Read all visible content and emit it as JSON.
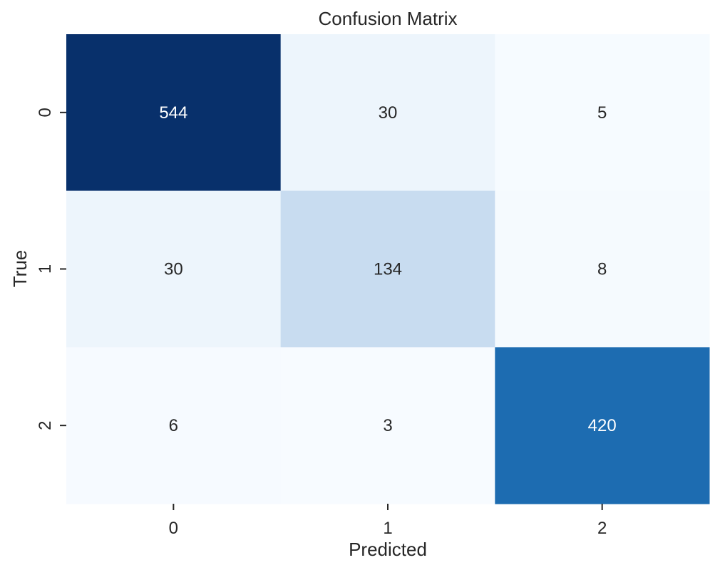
{
  "chart_data": {
    "type": "heatmap",
    "title": "Confusion Matrix",
    "xlabel": "Predicted",
    "ylabel": "True",
    "x_categories": [
      "0",
      "1",
      "2"
    ],
    "y_categories": [
      "0",
      "1",
      "2"
    ],
    "values": [
      [
        544,
        30,
        5
      ],
      [
        30,
        134,
        8
      ],
      [
        6,
        3,
        420
      ]
    ],
    "colormap": "Blues",
    "color_low": "#f7fbff",
    "color_high": "#08306b",
    "grid": false,
    "legend": "none"
  }
}
